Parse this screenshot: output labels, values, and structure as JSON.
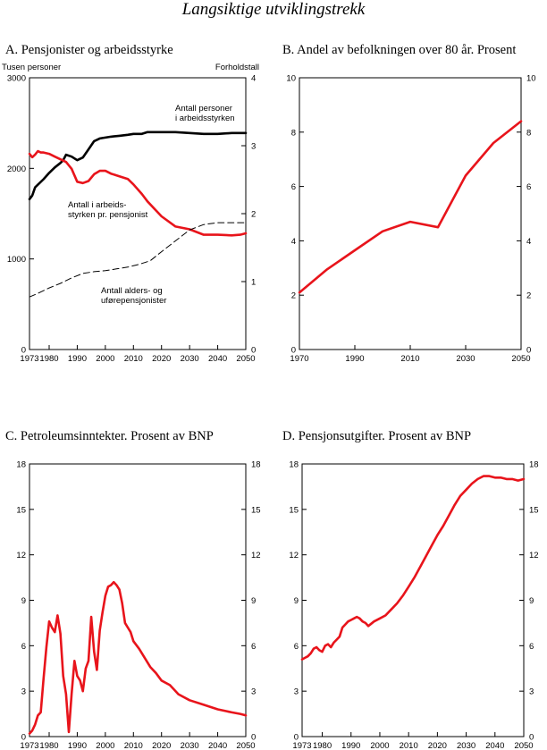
{
  "page_title": "Langsiktige utviklingstrekk",
  "chart_data": [
    {
      "id": "A",
      "type": "line",
      "title": "A.   Pensjonister og arbeidsstyrke",
      "left_unit": "Tusen personer",
      "right_unit": "Forholdstall",
      "xlim": [
        1973,
        2050
      ],
      "ylim_left": [
        0,
        3000
      ],
      "ylim_right": [
        0,
        4
      ],
      "x_ticks": [
        1973,
        1980,
        1990,
        2000,
        2010,
        2020,
        2030,
        2040,
        2050
      ],
      "y_ticks_left": [
        0,
        1000,
        2000,
        3000
      ],
      "y_ticks_right": [
        0,
        1,
        2,
        3,
        4
      ],
      "annotations": [
        {
          "lines": [
            "Antall personer",
            "i arbeidsstyrken"
          ]
        },
        {
          "lines": [
            "Antall i arbeids-",
            "styrken pr. pensjonist"
          ]
        },
        {
          "lines": [
            "Antall alders- og",
            "uførepensjonister"
          ]
        }
      ],
      "series": [
        {
          "axis": "left",
          "color": "#000000",
          "style": "solid",
          "x": [
            1973,
            1974,
            1975,
            1976,
            1978,
            1980,
            1982,
            1984,
            1985,
            1986,
            1988,
            1990,
            1992,
            1994,
            1996,
            1998,
            2000,
            2002,
            2005,
            2008,
            2010,
            2013,
            2015,
            2020,
            2025,
            2030,
            2035,
            2040,
            2045,
            2050
          ],
          "y": [
            1660,
            1700,
            1790,
            1820,
            1880,
            1950,
            2010,
            2060,
            2090,
            2150,
            2130,
            2090,
            2120,
            2210,
            2300,
            2330,
            2340,
            2350,
            2360,
            2370,
            2380,
            2380,
            2400,
            2400,
            2400,
            2390,
            2380,
            2380,
            2390,
            2390
          ]
        },
        {
          "axis": "right",
          "color": "#e8141b",
          "style": "solid",
          "x": [
            1973,
            1974,
            1975,
            1976,
            1977,
            1978,
            1980,
            1982,
            1984,
            1986,
            1988,
            1990,
            1992,
            1994,
            1996,
            1998,
            2000,
            2002,
            2005,
            2008,
            2010,
            2013,
            2015,
            2020,
            2025,
            2030,
            2035,
            2040,
            2045,
            2048,
            2050
          ],
          "y": [
            2.88,
            2.83,
            2.87,
            2.92,
            2.9,
            2.9,
            2.88,
            2.84,
            2.8,
            2.76,
            2.66,
            2.47,
            2.45,
            2.48,
            2.58,
            2.63,
            2.63,
            2.59,
            2.55,
            2.51,
            2.43,
            2.29,
            2.18,
            1.96,
            1.81,
            1.77,
            1.69,
            1.69,
            1.68,
            1.69,
            1.71
          ]
        },
        {
          "axis": "left",
          "color": "#000000",
          "style": "dashed",
          "x": [
            1973,
            1976,
            1980,
            1984,
            1988,
            1992,
            1996,
            2000,
            2004,
            2008,
            2012,
            2016,
            2020,
            2025,
            2030,
            2035,
            2040,
            2045,
            2050
          ],
          "y": [
            580,
            620,
            680,
            730,
            790,
            840,
            860,
            870,
            890,
            910,
            940,
            980,
            1080,
            1200,
            1320,
            1380,
            1400,
            1400,
            1400
          ]
        }
      ]
    },
    {
      "id": "B",
      "type": "line",
      "title": "B.  Andel av befolkningen over 80 år. Prosent",
      "xlim": [
        1970,
        2050
      ],
      "ylim": [
        0,
        10
      ],
      "x_ticks": [
        1970,
        1990,
        2010,
        2030,
        2050
      ],
      "y_ticks": [
        0,
        2,
        4,
        6,
        8,
        10
      ],
      "series": [
        {
          "color": "#e8141b",
          "x": [
            1970,
            1980,
            1990,
            2000,
            2010,
            2020,
            2030,
            2040,
            2050
          ],
          "y": [
            2.1,
            2.95,
            3.65,
            4.35,
            4.7,
            4.5,
            6.4,
            7.6,
            8.4
          ]
        }
      ]
    },
    {
      "id": "C",
      "type": "line",
      "title": "C.  Petroleumsinntekter. Prosent av BNP",
      "xlim": [
        1973,
        2050
      ],
      "ylim": [
        0,
        18
      ],
      "x_ticks": [
        1973,
        1980,
        1990,
        2000,
        2010,
        2020,
        2030,
        2040,
        2050
      ],
      "y_ticks": [
        0,
        3,
        6,
        9,
        12,
        15,
        18
      ],
      "series": [
        {
          "color": "#e8141b",
          "x": [
            1973,
            1974,
            1975,
            1976,
            1977,
            1978,
            1979,
            1980,
            1981,
            1982,
            1983,
            1984,
            1985,
            1986,
            1987,
            1988,
            1989,
            1990,
            1991,
            1992,
            1993,
            1994,
            1995,
            1996,
            1997,
            1998,
            1999,
            2000,
            2001,
            2002,
            2003,
            2004,
            2005,
            2006,
            2007,
            2008,
            2009,
            2010,
            2012,
            2014,
            2016,
            2018,
            2020,
            2023,
            2026,
            2030,
            2035,
            2040,
            2045,
            2048,
            2050
          ],
          "y": [
            0.2,
            0.4,
            0.8,
            1.4,
            1.6,
            3.8,
            5.9,
            7.6,
            7.2,
            6.9,
            8.0,
            6.8,
            4.0,
            2.8,
            0.3,
            2.8,
            5.0,
            4.0,
            3.7,
            3.0,
            4.5,
            5.0,
            7.9,
            5.6,
            4.4,
            7.0,
            8.2,
            9.3,
            9.9,
            10.0,
            10.2,
            10.0,
            9.7,
            8.8,
            7.5,
            7.2,
            6.9,
            6.3,
            5.8,
            5.2,
            4.6,
            4.2,
            3.7,
            3.4,
            2.8,
            2.4,
            2.1,
            1.8,
            1.6,
            1.5,
            1.4
          ]
        }
      ]
    },
    {
      "id": "D",
      "type": "line",
      "title": "D.  Pensjonsutgifter. Prosent av BNP",
      "xlim": [
        1973,
        2050
      ],
      "ylim": [
        0,
        18
      ],
      "x_ticks": [
        1973,
        1980,
        1990,
        2000,
        2010,
        2020,
        2030,
        2040,
        2050
      ],
      "y_ticks": [
        0,
        3,
        6,
        9,
        12,
        15,
        18
      ],
      "series": [
        {
          "color": "#e8141b",
          "x": [
            1973,
            1974,
            1975,
            1976,
            1977,
            1978,
            1979,
            1980,
            1981,
            1982,
            1983,
            1984,
            1985,
            1986,
            1987,
            1988,
            1989,
            1990,
            1991,
            1992,
            1993,
            1994,
            1995,
            1996,
            1998,
            2000,
            2002,
            2004,
            2006,
            2008,
            2010,
            2012,
            2014,
            2016,
            2018,
            2020,
            2022,
            2024,
            2026,
            2028,
            2030,
            2032,
            2034,
            2036,
            2038,
            2040,
            2042,
            2044,
            2046,
            2048,
            2050
          ],
          "y": [
            5.1,
            5.2,
            5.3,
            5.5,
            5.8,
            5.9,
            5.7,
            5.6,
            6.0,
            6.1,
            5.9,
            6.2,
            6.4,
            6.6,
            7.2,
            7.4,
            7.6,
            7.7,
            7.8,
            7.9,
            7.8,
            7.6,
            7.5,
            7.3,
            7.6,
            7.8,
            8.0,
            8.4,
            8.8,
            9.3,
            9.9,
            10.5,
            11.2,
            11.9,
            12.6,
            13.3,
            13.9,
            14.6,
            15.3,
            15.9,
            16.3,
            16.7,
            17.0,
            17.2,
            17.2,
            17.1,
            17.1,
            17.0,
            17.0,
            16.9,
            17.0
          ]
        }
      ]
    }
  ]
}
